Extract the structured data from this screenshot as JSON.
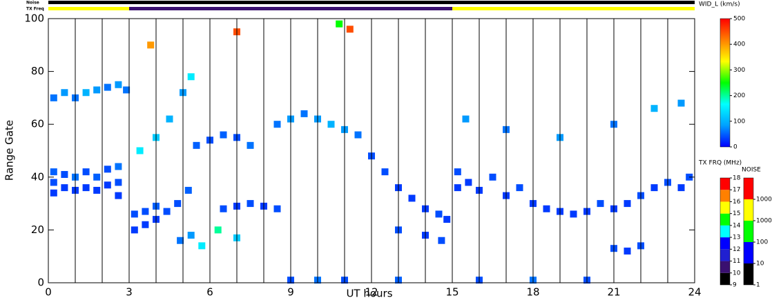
{
  "chart_data": {
    "type": "range_time",
    "xlabel": "UT hours",
    "ylabel": "Range Gate",
    "xlim": [
      0,
      24
    ],
    "xticks": [
      0,
      3,
      6,
      9,
      12,
      15,
      18,
      21,
      24
    ],
    "ylim": [
      0,
      100
    ],
    "yticks": [
      0,
      20,
      40,
      60,
      80,
      100
    ],
    "hour_lines": [
      1,
      2,
      3,
      4,
      5,
      6,
      7,
      8,
      9,
      10,
      11,
      12,
      13,
      14,
      15,
      16,
      17,
      18,
      19,
      20,
      21,
      22,
      23
    ],
    "noise_label": "Noise",
    "noise_bar_color": "#000000",
    "txfreq_label": "TX Freq",
    "txfreq_segments": [
      {
        "start": 0,
        "end": 3,
        "color": "#ffff00"
      },
      {
        "start": 3,
        "end": 15,
        "color": "#3a1070"
      },
      {
        "start": 15,
        "end": 24,
        "color": "#ffff00"
      }
    ],
    "width_title": "WID_L (km/s)",
    "width_lim": [
      0,
      500
    ],
    "width_ticks": [
      0,
      100,
      200,
      300,
      400,
      500
    ],
    "width_colors": [
      "#0000ff",
      "#00a0ff",
      "#00ffff",
      "#00ff00",
      "#ffff00",
      "#ff8000",
      "#ff0000"
    ],
    "tx_title": "TX FRQ (MHz)",
    "tx_lim": [
      9,
      18
    ],
    "tx_ticks": [
      9,
      10,
      11,
      12,
      13,
      14,
      15,
      16,
      17,
      18
    ],
    "tx_colors": [
      "#000000",
      "#3a1070",
      "#2020d0",
      "#0000ff",
      "#00ffff",
      "#00ff00",
      "#ffff00",
      "#ff8000",
      "#ff0000"
    ],
    "noise_title": "NOISE",
    "noise_lim": [
      1,
      100000
    ],
    "noise_ticks": [
      1,
      10,
      100,
      1000,
      10000
    ],
    "noise_colors": [
      "#000000",
      "#0000ff",
      "#00ff00",
      "#ffff00",
      "#ff0000"
    ],
    "points": [
      [
        0.2,
        38,
        40
      ],
      [
        0.2,
        34,
        30
      ],
      [
        0.2,
        42,
        50
      ],
      [
        0.6,
        36,
        30
      ],
      [
        0.6,
        41,
        40
      ],
      [
        1,
        35,
        30
      ],
      [
        1,
        40,
        60
      ],
      [
        1.4,
        36,
        30
      ],
      [
        1.4,
        42,
        40
      ],
      [
        1.8,
        35,
        30
      ],
      [
        1.8,
        40,
        50
      ],
      [
        2.2,
        37,
        30
      ],
      [
        2.2,
        43,
        40
      ],
      [
        2.6,
        33,
        30
      ],
      [
        2.6,
        38,
        40
      ],
      [
        2.6,
        44,
        60
      ],
      [
        0.2,
        70,
        60
      ],
      [
        0.6,
        72,
        80
      ],
      [
        1,
        70,
        60
      ],
      [
        1.4,
        72,
        100
      ],
      [
        1.8,
        73,
        80
      ],
      [
        2.2,
        74,
        60
      ],
      [
        2.6,
        75,
        80
      ],
      [
        2.9,
        73,
        60
      ],
      [
        3.2,
        20,
        30
      ],
      [
        3.2,
        26,
        40
      ],
      [
        3.6,
        22,
        30
      ],
      [
        3.6,
        27,
        40
      ],
      [
        4,
        24,
        30
      ],
      [
        4,
        29,
        50
      ],
      [
        4.4,
        27,
        40
      ],
      [
        4.8,
        30,
        40
      ],
      [
        5.2,
        35,
        50
      ],
      [
        3.4,
        50,
        150
      ],
      [
        4,
        55,
        120
      ],
      [
        4.5,
        62,
        100
      ],
      [
        5,
        72,
        80
      ],
      [
        5.3,
        78,
        150
      ],
      [
        4.9,
        16,
        60
      ],
      [
        5.3,
        18,
        80
      ],
      [
        5.7,
        14,
        150
      ],
      [
        6.3,
        20,
        200
      ],
      [
        7,
        17,
        120
      ],
      [
        5.5,
        52,
        50
      ],
      [
        6,
        54,
        40
      ],
      [
        6.5,
        56,
        50
      ],
      [
        7,
        55,
        40
      ],
      [
        7.5,
        52,
        60
      ],
      [
        6.5,
        28,
        40
      ],
      [
        7,
        29,
        30
      ],
      [
        7.5,
        30,
        40
      ],
      [
        8,
        29,
        30
      ],
      [
        8.5,
        28,
        40
      ],
      [
        8.5,
        60,
        60
      ],
      [
        9,
        62,
        80
      ],
      [
        9.5,
        64,
        60
      ],
      [
        10,
        62,
        80
      ],
      [
        10.5,
        60,
        100
      ],
      [
        11,
        58,
        80
      ],
      [
        11.5,
        56,
        60
      ],
      [
        12,
        48,
        40
      ],
      [
        12.5,
        42,
        40
      ],
      [
        13,
        36,
        30
      ],
      [
        13.5,
        32,
        30
      ],
      [
        14,
        28,
        30
      ],
      [
        14.5,
        26,
        40
      ],
      [
        14.8,
        24,
        30
      ],
      [
        13,
        20,
        40
      ],
      [
        14,
        18,
        30
      ],
      [
        14.6,
        16,
        40
      ],
      [
        15.2,
        36,
        30
      ],
      [
        15.2,
        42,
        40
      ],
      [
        15.6,
        38,
        30
      ],
      [
        16,
        35,
        30
      ],
      [
        16.5,
        40,
        40
      ],
      [
        17,
        33,
        30
      ],
      [
        17.5,
        36,
        40
      ],
      [
        18,
        30,
        30
      ],
      [
        18.5,
        28,
        30
      ],
      [
        19,
        27,
        30
      ],
      [
        19.5,
        26,
        30
      ],
      [
        20,
        27,
        30
      ],
      [
        20.5,
        30,
        40
      ],
      [
        21,
        28,
        30
      ],
      [
        21.5,
        30,
        30
      ],
      [
        22,
        33,
        40
      ],
      [
        22.5,
        36,
        30
      ],
      [
        23,
        38,
        40
      ],
      [
        23.5,
        36,
        30
      ],
      [
        23.8,
        40,
        40
      ],
      [
        15.5,
        62,
        80
      ],
      [
        17,
        58,
        60
      ],
      [
        19,
        55,
        80
      ],
      [
        21,
        60,
        60
      ],
      [
        22.5,
        66,
        100
      ],
      [
        23.5,
        68,
        80
      ],
      [
        21,
        13,
        40
      ],
      [
        21.5,
        12,
        30
      ],
      [
        22,
        14,
        40
      ],
      [
        9,
        1,
        40
      ],
      [
        10,
        1,
        60
      ],
      [
        11,
        1,
        40
      ],
      [
        13,
        1,
        50
      ],
      [
        16,
        1,
        40
      ],
      [
        18,
        1,
        60
      ],
      [
        20,
        1,
        40
      ],
      [
        7,
        95,
        450
      ],
      [
        10.8,
        98,
        250
      ],
      [
        11.2,
        96,
        450
      ],
      [
        3.8,
        90,
        400
      ]
    ]
  }
}
